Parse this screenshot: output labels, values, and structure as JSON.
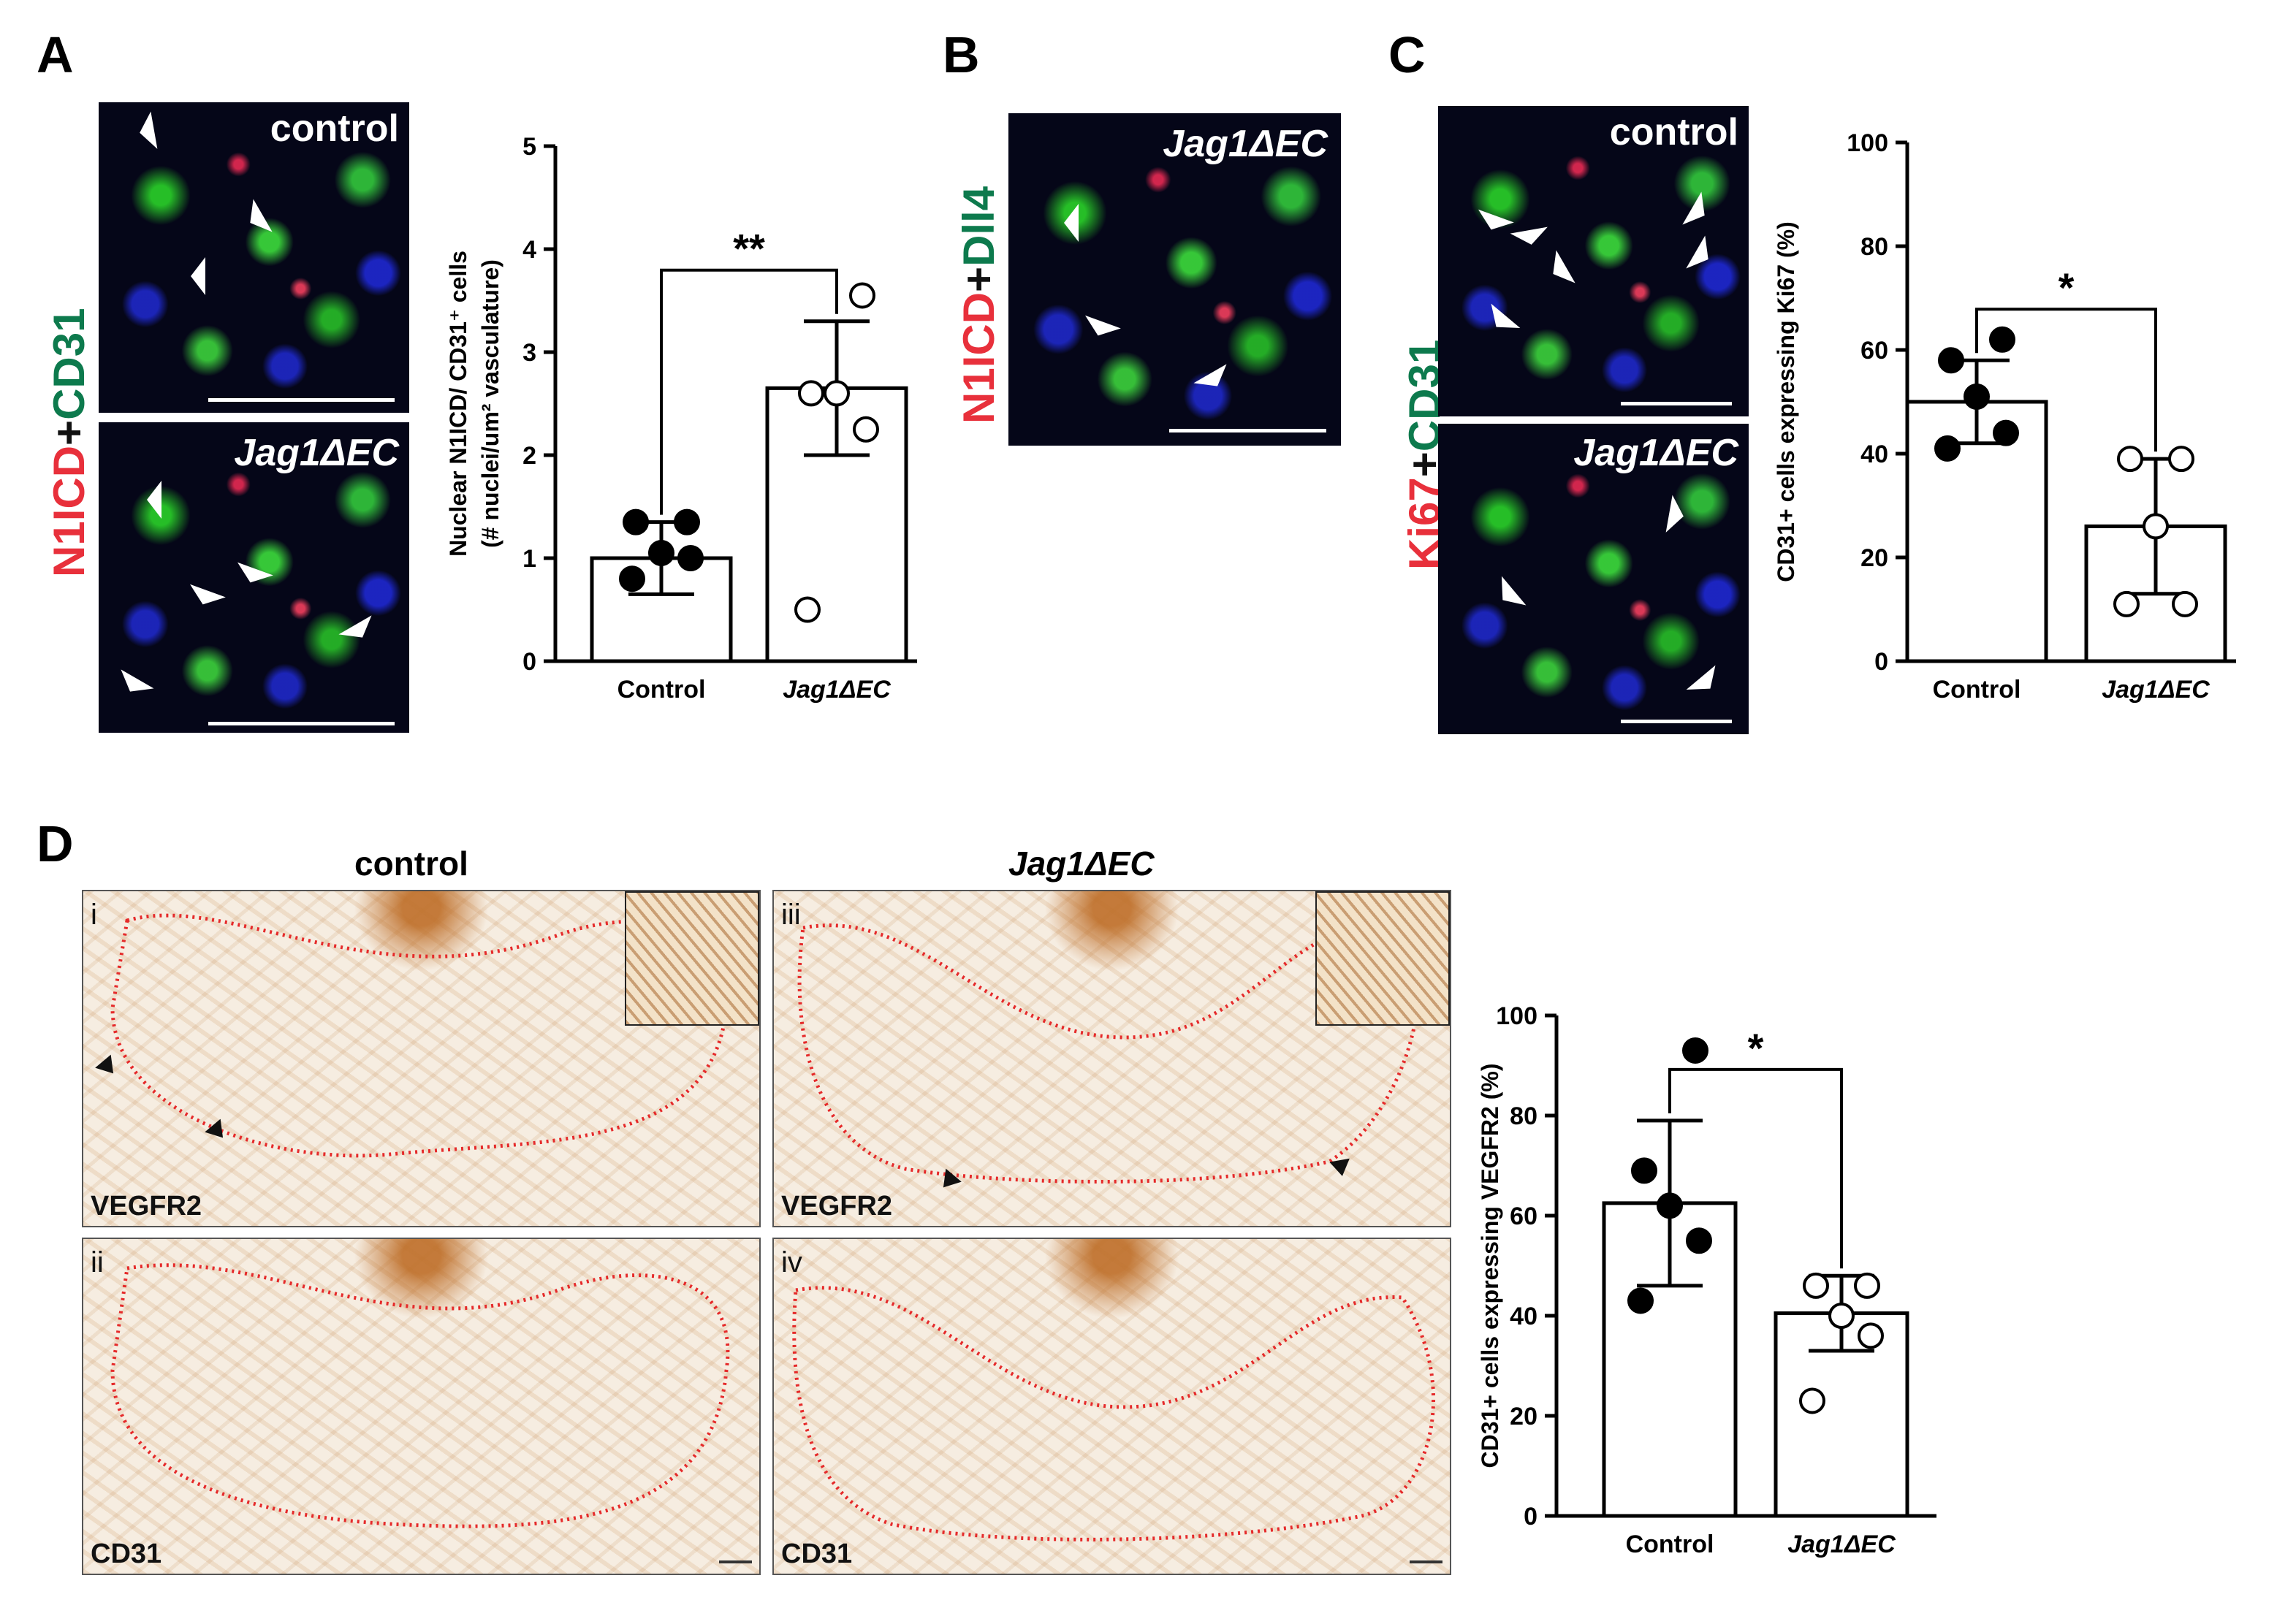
{
  "panels": {
    "A": {
      "letter": "A",
      "stain_label": {
        "part1": "N1ICD",
        "plus": "+",
        "part2": "CD31"
      },
      "images": [
        {
          "label": "control"
        },
        {
          "label": "Jag1ΔEC"
        }
      ]
    },
    "B": {
      "letter": "B",
      "stain_label": {
        "part1": "N1ICD",
        "plus": "+",
        "part2": "Dll4"
      },
      "images": [
        {
          "label": "Jag1ΔEC"
        }
      ]
    },
    "C": {
      "letter": "C",
      "stain_label": {
        "part1": "Ki67",
        "plus": "+",
        "part2": "CD31"
      },
      "images": [
        {
          "label": "control"
        },
        {
          "label": "Jag1ΔEC"
        }
      ]
    },
    "D": {
      "letter": "D",
      "col_headers": [
        "control",
        "Jag1ΔEC"
      ],
      "images": [
        {
          "roman": "i",
          "stain": "VEGFR2"
        },
        {
          "roman": "ii",
          "stain": "CD31"
        },
        {
          "roman": "iii",
          "stain": "VEGFR2"
        },
        {
          "roman": "iv",
          "stain": "CD31"
        }
      ]
    }
  },
  "colors": {
    "stain_red": "#e8303b",
    "stain_green": "#0d7a4d",
    "bar_fill": "#ffffff",
    "axis": "#000000"
  },
  "chart_data": [
    {
      "id": "chartA",
      "type": "bar",
      "categories": [
        "Control",
        "Jag1ΔEC"
      ],
      "category_italic": [
        false,
        true
      ],
      "ylabel_lines": [
        "Nuclear N1ICD/ CD31⁺ cells",
        "(# nuclei/um² vasculature)"
      ],
      "ylim": [
        0,
        5
      ],
      "yticks": [
        0,
        1,
        2,
        3,
        4,
        5
      ],
      "bar_values": [
        1.0,
        2.65
      ],
      "error_sd": [
        0.35,
        0.65
      ],
      "points": [
        [
          0.8,
          1.0,
          1.05,
          1.35,
          1.35
        ],
        [
          0.5,
          2.25,
          2.6,
          2.6,
          3.55
        ]
      ],
      "point_style": [
        "filled",
        "open"
      ],
      "significance": "**"
    },
    {
      "id": "chartC",
      "type": "bar",
      "categories": [
        "Control",
        "Jag1ΔEC"
      ],
      "category_italic": [
        false,
        true
      ],
      "ylabel_lines": [
        "CD31+ cells expressing Ki67 (%)"
      ],
      "ylim": [
        0,
        100
      ],
      "yticks": [
        0,
        20,
        40,
        60,
        80,
        100
      ],
      "bar_values": [
        50,
        26
      ],
      "error_sd": [
        8,
        13
      ],
      "points": [
        [
          41,
          44,
          51,
          58,
          62
        ],
        [
          11,
          11,
          26,
          39,
          39
        ]
      ],
      "point_style": [
        "filled",
        "open"
      ],
      "significance": "*"
    },
    {
      "id": "chartD",
      "type": "bar",
      "categories": [
        "Control",
        "Jag1ΔEC"
      ],
      "category_italic": [
        false,
        true
      ],
      "ylabel_lines": [
        "CD31+ cells expressing VEGFR2 (%)"
      ],
      "ylim": [
        0,
        100
      ],
      "yticks": [
        0,
        20,
        40,
        60,
        80,
        100
      ],
      "bar_values": [
        62.5,
        40.5
      ],
      "error_sd": [
        16.5,
        7.5
      ],
      "points": [
        [
          43,
          55,
          62,
          69,
          93
        ],
        [
          23,
          36,
          40,
          46,
          46
        ]
      ],
      "point_style": [
        "filled",
        "open"
      ],
      "significance": "*"
    }
  ]
}
